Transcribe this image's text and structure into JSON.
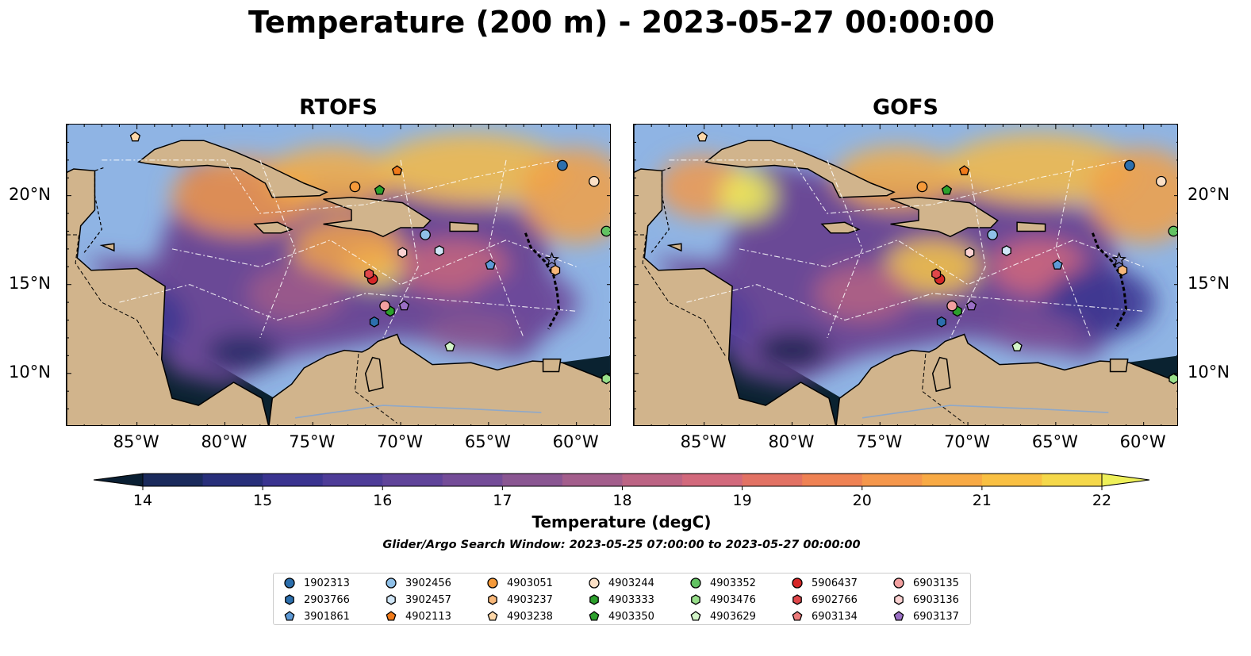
{
  "title": "Temperature (200 m) - 2023-05-27 00:00:00",
  "panels": [
    {
      "title": "RTOFS"
    },
    {
      "title": "GOFS"
    }
  ],
  "x_axis_ticks": [
    "85°W",
    "80°W",
    "75°W",
    "70°W",
    "65°W",
    "60°W"
  ],
  "y_axis_ticks": [
    "20°N",
    "15°N",
    "10°N"
  ],
  "map_extent": {
    "lon": [
      -89,
      -58
    ],
    "lat": [
      7,
      24
    ]
  },
  "colorbar": {
    "label": "Temperature (degC)",
    "ticks": [
      "14",
      "15",
      "16",
      "17",
      "18",
      "19",
      "20",
      "21",
      "22"
    ],
    "range": [
      14,
      22
    ],
    "extend": "both",
    "colors": [
      "#0a1f33",
      "#1a2a5c",
      "#282f7a",
      "#3a3490",
      "#4e3c98",
      "#60449a",
      "#744c98",
      "#8a5692",
      "#a35e8c",
      "#bc6484",
      "#d2697c",
      "#e27264",
      "#ef8254",
      "#f5974c",
      "#f8aa45",
      "#f9c043",
      "#f5d84a",
      "#eef05a"
    ]
  },
  "search_window": "Glider/Argo Search Window: 2023-05-25 07:00:00 to 2023-05-27 00:00:00",
  "floats": [
    {
      "id": "1902313",
      "marker": "circle",
      "color": "#2c6fad",
      "lon": -60.8,
      "lat": 21.7
    },
    {
      "id": "2903766",
      "marker": "hexagon",
      "color": "#2c6fad",
      "lon": -71.5,
      "lat": 12.9
    },
    {
      "id": "3901861",
      "marker": "pentagon",
      "color": "#5e9ad6",
      "lon": -64.9,
      "lat": 16.1
    },
    {
      "id": "3902456",
      "marker": "circle",
      "color": "#8fc0e8",
      "lon": -68.6,
      "lat": 17.8
    },
    {
      "id": "3902457",
      "marker": "hexagon",
      "color": "#d0e6f7",
      "lon": -67.8,
      "lat": 16.9
    },
    {
      "id": "4902113",
      "marker": "pentagon",
      "color": "#f07a1a",
      "lon": -70.2,
      "lat": 21.4
    },
    {
      "id": "4903051",
      "marker": "circle",
      "color": "#f59a3a",
      "lon": -72.6,
      "lat": 20.5
    },
    {
      "id": "4903237",
      "marker": "hexagon",
      "color": "#f8b87a",
      "lon": -61.2,
      "lat": 15.8
    },
    {
      "id": "4903238",
      "marker": "pentagon",
      "color": "#fdd7a8",
      "lon": -85.1,
      "lat": 23.3
    },
    {
      "id": "4903244",
      "marker": "circle",
      "color": "#fbe0c6",
      "lon": -59.0,
      "lat": 20.8
    },
    {
      "id": "4903333",
      "marker": "hexagon",
      "color": "#2ca02c",
      "lon": -70.6,
      "lat": 13.5
    },
    {
      "id": "4903350",
      "marker": "pentagon",
      "color": "#2ca02c",
      "lon": -71.2,
      "lat": 20.3
    },
    {
      "id": "4903352",
      "marker": "circle",
      "color": "#62c262",
      "lon": -58.3,
      "lat": 18.0
    },
    {
      "id": "4903476",
      "marker": "hexagon",
      "color": "#98df8a",
      "lon": -58.3,
      "lat": 9.7
    },
    {
      "id": "4903629",
      "marker": "pentagon",
      "color": "#d3f5c8",
      "lon": -67.2,
      "lat": 11.5
    },
    {
      "id": "5906437",
      "marker": "circle",
      "color": "#d62728",
      "lon": -71.6,
      "lat": 15.3
    },
    {
      "id": "6902766",
      "marker": "hexagon",
      "color": "#e0474a",
      "lon": -71.8,
      "lat": 15.6
    },
    {
      "id": "6903134",
      "marker": "pentagon",
      "color": "#ec7b7b",
      "lon": -61.4,
      "lat": 16.4
    },
    {
      "id": "6903135",
      "marker": "circle",
      "color": "#f2a0a0",
      "lon": -70.9,
      "lat": 13.8
    },
    {
      "id": "6903136",
      "marker": "hexagon",
      "color": "#fbd2d2",
      "lon": -69.9,
      "lat": 16.8
    },
    {
      "id": "6903137",
      "marker": "pentagon",
      "color": "#9a6fc4",
      "lon": -69.8,
      "lat": 13.8
    }
  ]
}
